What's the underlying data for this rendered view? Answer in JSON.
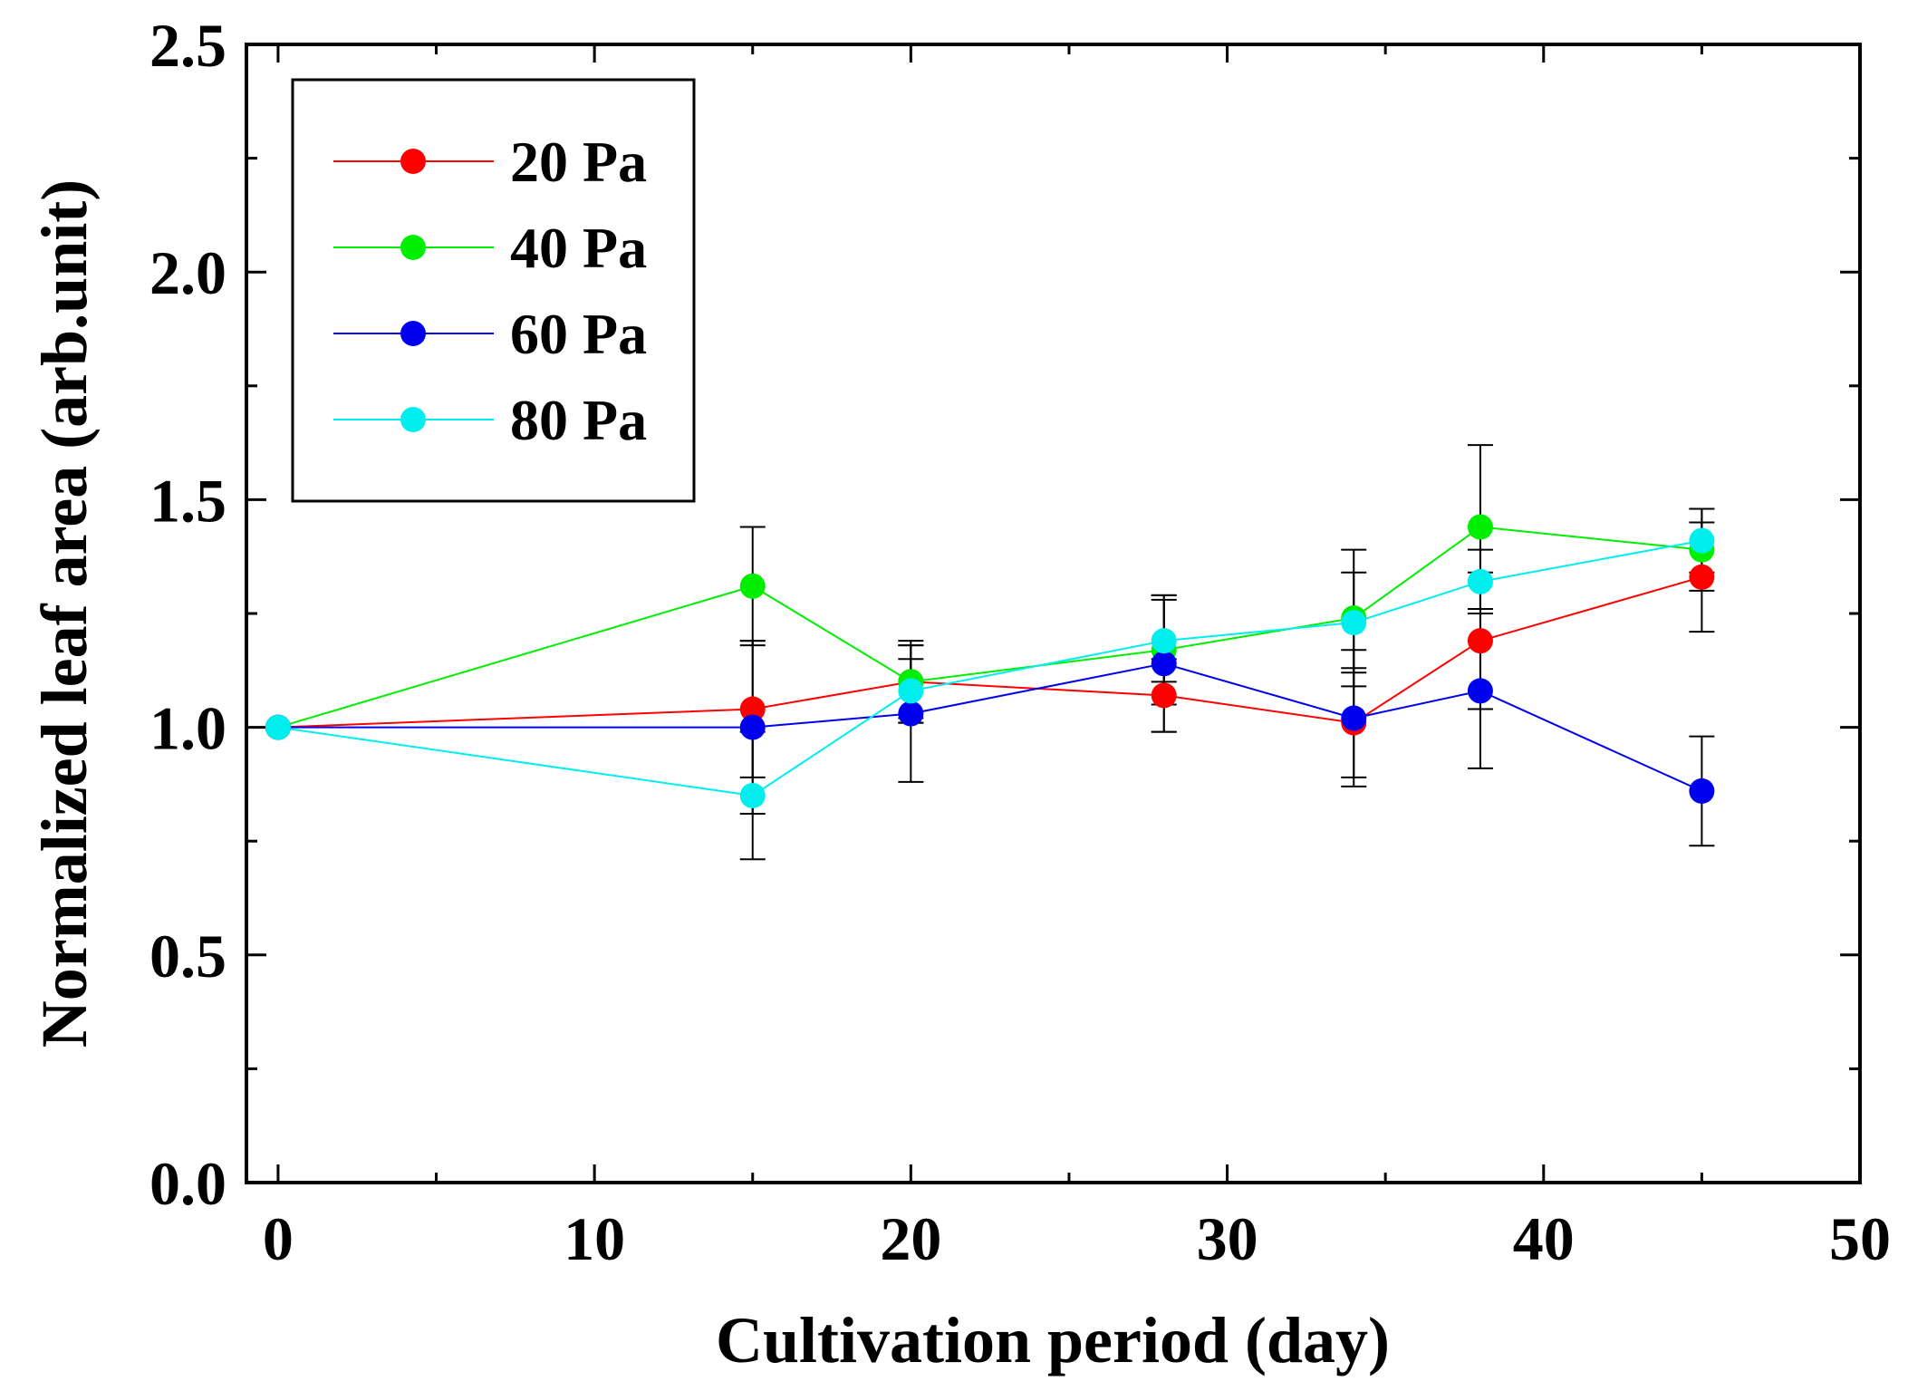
{
  "chart_data": {
    "type": "line",
    "title": "",
    "xlabel": "Cultivation period (day)",
    "ylabel": "Normalized leaf area (arb.unit)",
    "xlim": [
      -1,
      50
    ],
    "ylim": [
      0,
      2.5
    ],
    "xticks": [
      0,
      10,
      20,
      30,
      40,
      50
    ],
    "xtick_labels": [
      "0",
      "10",
      "20",
      "30",
      "40",
      "50"
    ],
    "yticks": [
      0,
      0.5,
      1.0,
      1.5,
      2.0,
      2.5
    ],
    "ytick_labels": [
      "0.0",
      "0.5",
      "1.0",
      "1.5",
      "2.0",
      "2.5"
    ],
    "legend_position": "top-left",
    "x": [
      0,
      15,
      20,
      28,
      34,
      38,
      45
    ],
    "series": [
      {
        "name": "20 Pa",
        "color": "#ff0000",
        "values": [
          1.0,
          1.04,
          1.1,
          1.07,
          1.01,
          1.19,
          1.33
        ],
        "errors": [
          0,
          0.15,
          0.08,
          0.08,
          0.12,
          0.15,
          0.12
        ]
      },
      {
        "name": "40 Pa",
        "color": "#00ee00",
        "values": [
          1.0,
          1.31,
          1.1,
          1.17,
          1.24,
          1.44,
          1.39
        ],
        "errors": [
          0,
          0.13,
          0.09,
          0.12,
          0.15,
          0.18,
          0.09
        ]
      },
      {
        "name": "60 Pa",
        "color": "#0000ee",
        "values": [
          1.0,
          1.0,
          1.03,
          1.14,
          1.02,
          1.08,
          0.86
        ],
        "errors": [
          0,
          0.19,
          0.15,
          0.15,
          0.15,
          0.17,
          0.12
        ]
      },
      {
        "name": "80 Pa",
        "color": "#00eeee",
        "values": [
          1.0,
          0.85,
          1.08,
          1.19,
          1.23,
          1.32,
          1.41
        ],
        "errors": [
          0,
          0.14,
          0.07,
          0.09,
          0.11,
          0.07,
          0.07
        ]
      }
    ]
  }
}
